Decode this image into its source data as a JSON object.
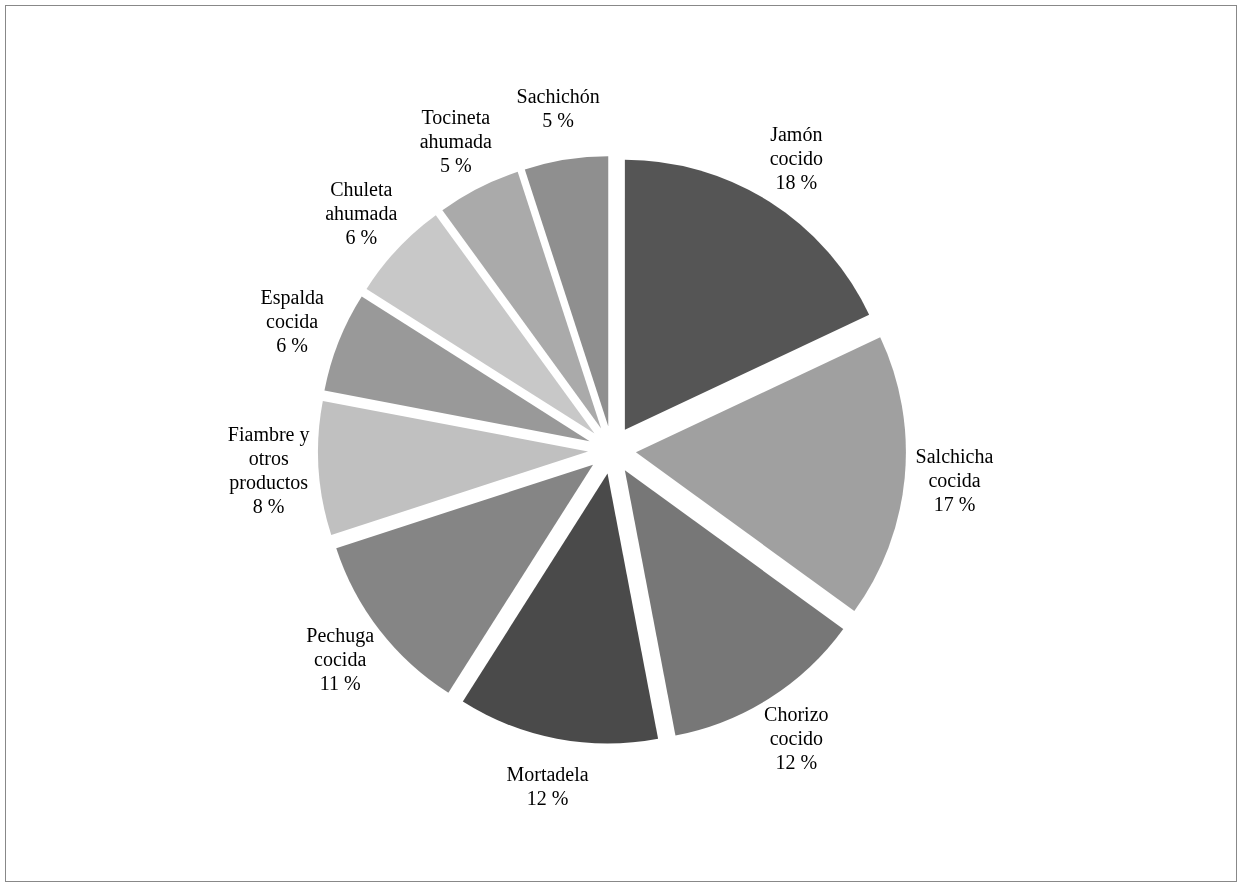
{
  "chart_data": {
    "type": "pie",
    "categories": [
      "Jamón cocido",
      "Salchicha cocida",
      "Chorizo cocido",
      "Mortadela",
      "Pechuga cocida",
      "Fiambre y otros productos",
      "Espalda cocida",
      "Chuleta ahumada",
      "Tocineta ahumada",
      "Sachichón"
    ],
    "values": [
      18,
      17,
      12,
      12,
      11,
      8,
      6,
      6,
      5,
      5
    ],
    "value_labels": [
      "18 %",
      "17 %",
      "12 %",
      "12 %",
      "11 %",
      "8 %",
      "6 %",
      "6 %",
      "5 %",
      "5 %"
    ],
    "colors": [
      "#555555",
      "#a0a0a0",
      "#777777",
      "#4a4a4a",
      "#858585",
      "#c0c0c0",
      "#999999",
      "#c8c8c8",
      "#aaaaaa",
      "#8f8f8f"
    ]
  }
}
